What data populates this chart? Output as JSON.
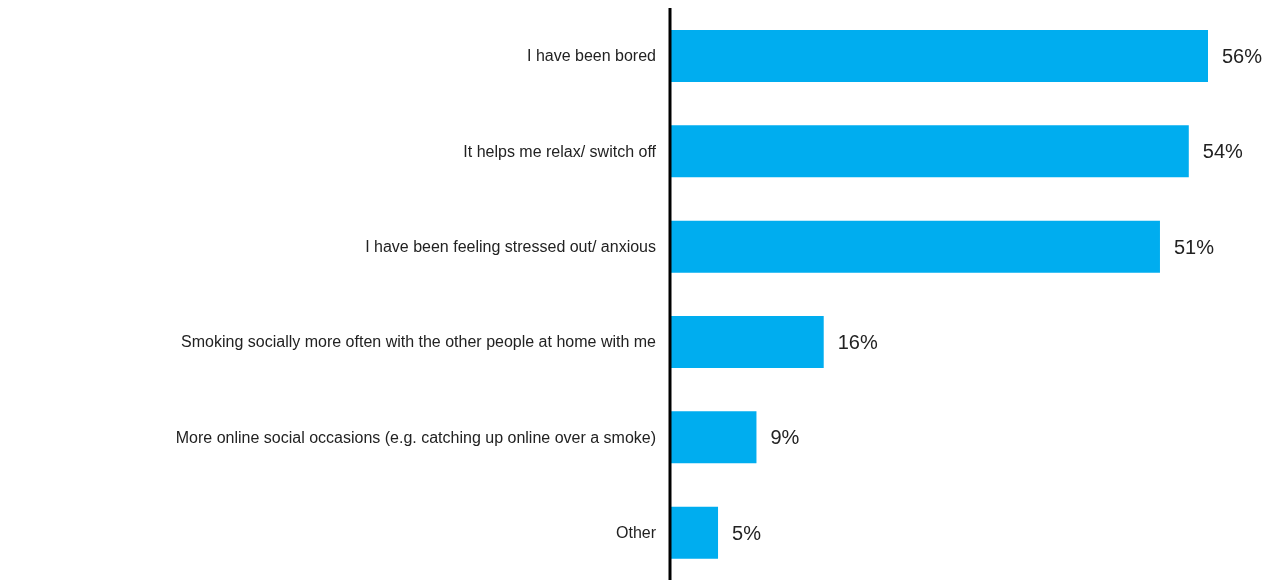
{
  "chart_data": {
    "type": "bar",
    "orientation": "horizontal",
    "categories": [
      "I have been bored",
      "It helps me relax/ switch off",
      "I have been feeling stressed out/ anxious",
      "Smoking socially more often with the other people at home with me",
      "More online social occasions (e.g. catching up online over a smoke)",
      "Other"
    ],
    "values": [
      56,
      54,
      51,
      16,
      9,
      5
    ],
    "color": "#00adef",
    "value_labels": [
      "56%",
      "54%",
      "51%",
      "16%",
      "9%",
      "5%"
    ]
  }
}
